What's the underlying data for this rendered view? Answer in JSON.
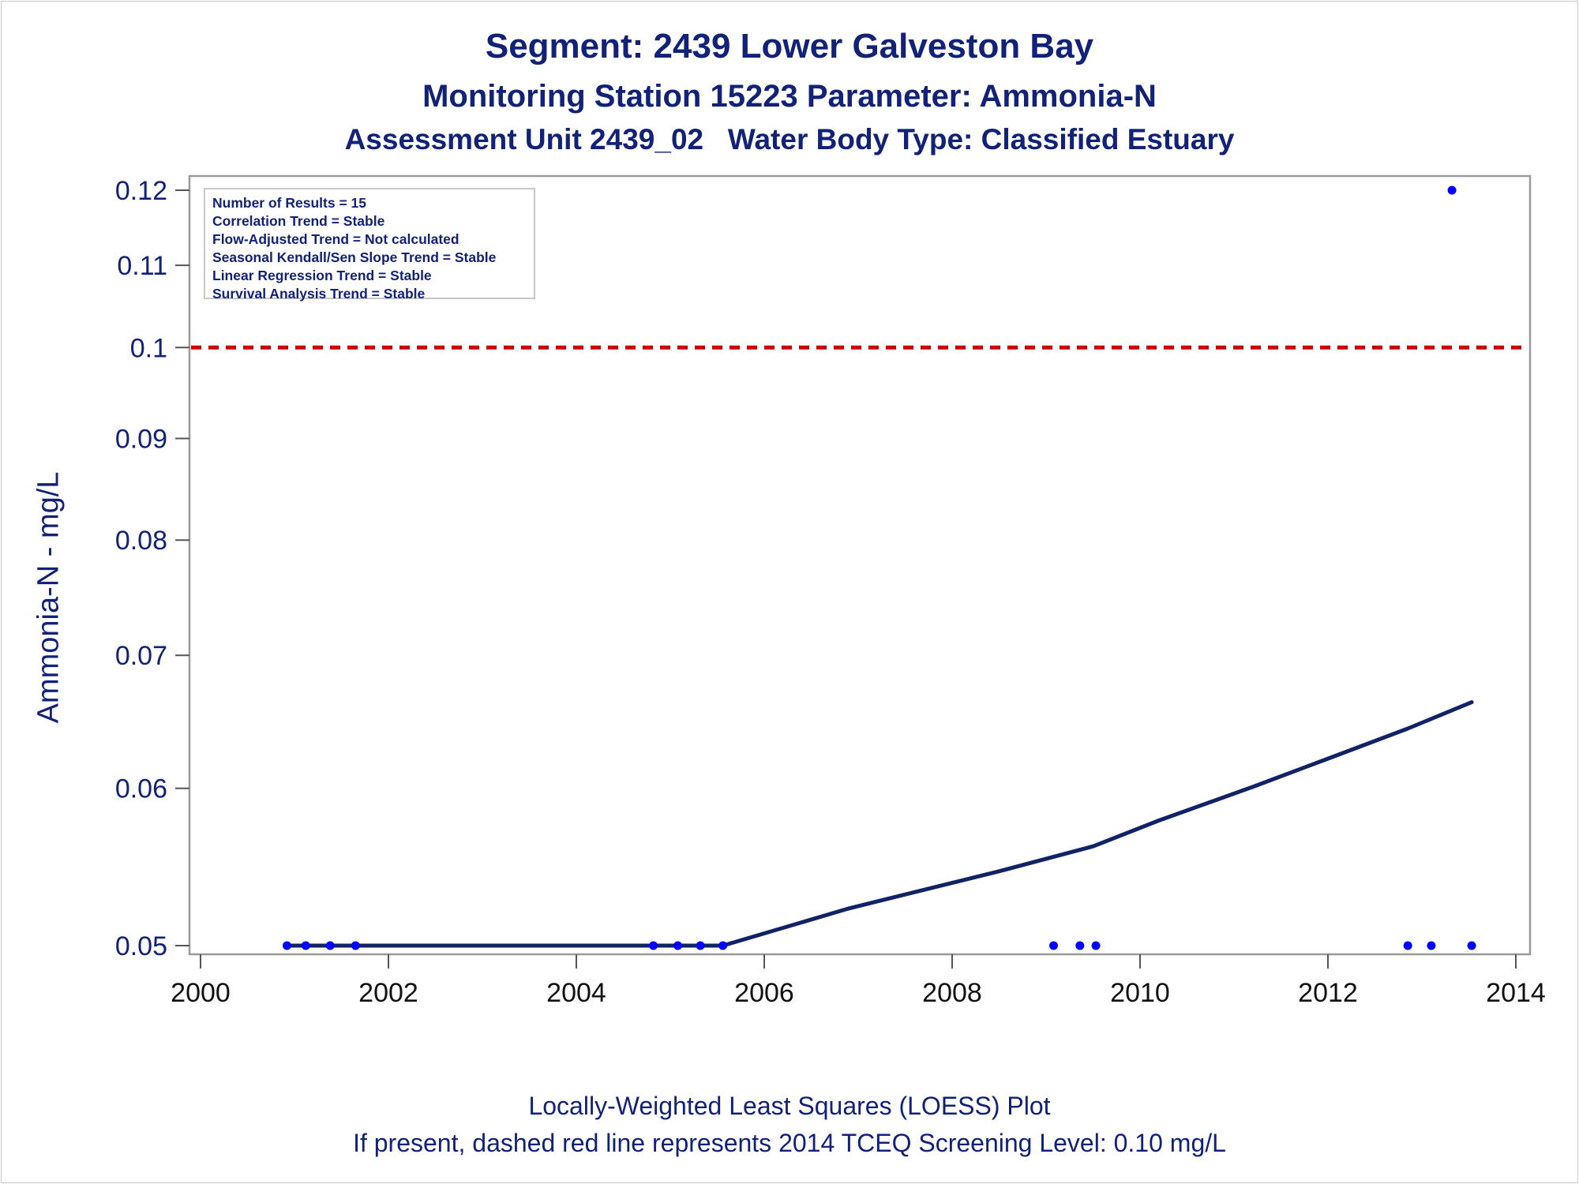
{
  "titles": {
    "line1": "Segment: 2439  Lower Galveston Bay",
    "line2": "Monitoring Station 15223 Parameter: Ammonia-N",
    "line3": "Assessment Unit 2439_02   Water Body Type: Classified Estuary"
  },
  "stats_box": [
    "Number of Results = 15",
    "Correlation Trend = Stable",
    "Flow-Adjusted Trend = Not calculated",
    "Seasonal Kendall/Sen Slope Trend = Stable",
    "Linear Regression Trend = Stable",
    "Survival Analysis Trend = Stable"
  ],
  "footer": {
    "line1": "Locally-Weighted Least Squares (LOESS) Plot",
    "line2": "If present, dashed red line represents 2014 TCEQ Screening Level: 0.10 mg/L"
  },
  "colors": {
    "text": "#112277",
    "points": "#0000ff",
    "loess_line": "#112266",
    "screening_line": "#cc0000",
    "frame": "#9a9a9a"
  },
  "chart_data": {
    "type": "scatter",
    "title": "Segment: 2439  Lower Galveston Bay",
    "xlabel": "",
    "ylabel": "Ammonia-N - mg/L",
    "xlim": [
      2000,
      2014
    ],
    "ylim": [
      0.05,
      0.12
    ],
    "y_scale": "log",
    "grid": false,
    "x_ticks": [
      2000,
      2002,
      2004,
      2006,
      2008,
      2010,
      2012,
      2014
    ],
    "x_tick_labels": [
      "2000",
      "2002",
      "2004",
      "2006",
      "2008",
      "2010",
      "2012",
      "2014"
    ],
    "y_ticks": [
      0.05,
      0.06,
      0.07,
      0.08,
      0.09,
      0.1,
      0.11,
      0.12
    ],
    "y_tick_labels": [
      "0.05",
      "0.06",
      "0.07",
      "0.08",
      "0.09",
      "0.1",
      "0.11",
      "0.12"
    ],
    "points": [
      {
        "x": 2000.92,
        "y": 0.05
      },
      {
        "x": 2001.12,
        "y": 0.05
      },
      {
        "x": 2001.38,
        "y": 0.05
      },
      {
        "x": 2001.65,
        "y": 0.05
      },
      {
        "x": 2004.82,
        "y": 0.05
      },
      {
        "x": 2005.08,
        "y": 0.05
      },
      {
        "x": 2005.32,
        "y": 0.05
      },
      {
        "x": 2005.56,
        "y": 0.05
      },
      {
        "x": 2009.08,
        "y": 0.05
      },
      {
        "x": 2009.36,
        "y": 0.05
      },
      {
        "x": 2009.53,
        "y": 0.05
      },
      {
        "x": 2012.85,
        "y": 0.05
      },
      {
        "x": 2013.1,
        "y": 0.05
      },
      {
        "x": 2013.32,
        "y": 0.12
      },
      {
        "x": 2013.53,
        "y": 0.05
      }
    ],
    "loess": [
      {
        "x": 2000.92,
        "y": 0.05
      },
      {
        "x": 2005.56,
        "y": 0.05
      },
      {
        "x": 2006.9,
        "y": 0.0522
      },
      {
        "x": 2008.5,
        "y": 0.0545
      },
      {
        "x": 2009.5,
        "y": 0.0561
      },
      {
        "x": 2010.2,
        "y": 0.0578
      },
      {
        "x": 2011.2,
        "y": 0.0601
      },
      {
        "x": 2012.0,
        "y": 0.0621
      },
      {
        "x": 2012.85,
        "y": 0.0643
      },
      {
        "x": 2013.53,
        "y": 0.0663
      }
    ],
    "screening_level": 0.1
  }
}
